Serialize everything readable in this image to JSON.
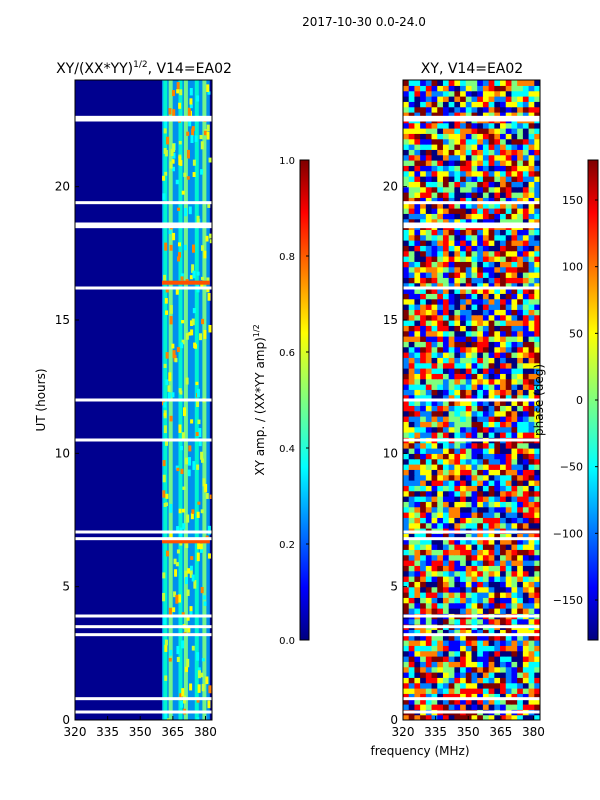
{
  "suptitle": "2017-10-30 0.0-24.0",
  "xlabel": "frequency (MHz)",
  "colors": {
    "band_bg": "#00008f",
    "gap": "#ffffff",
    "phase_mix": [
      "#00007f",
      "#0000ff",
      "#0080ff",
      "#00ffff",
      "#7fff7f",
      "#ffff00",
      "#ff8000",
      "#ff0000",
      "#7f0000"
    ]
  },
  "chart_data": [
    {
      "type": "heatmap",
      "title": "XY/(XX*YY)^{1/2}, V14=EA02",
      "title_main": "XY/(XX*YY)",
      "title_sup": "1/2",
      "title_rest": ", V14=EA02",
      "ylabel": "UT (hours)",
      "xlim": [
        320,
        383
      ],
      "ylim": [
        0,
        24
      ],
      "xticks": [
        320,
        335,
        350,
        365,
        380
      ],
      "yticks": [
        0,
        5,
        10,
        15,
        20
      ],
      "colorbar": {
        "label_main": "XY amp. / (XX*YY amp)",
        "label_sup": "1/2",
        "range": [
          0.0,
          1.0
        ],
        "ticks": [
          "0.0",
          "0.2",
          "0.4",
          "0.6",
          "0.8",
          "1.0"
        ]
      },
      "active_band_mhz": [
        360,
        382
      ],
      "bright_lanes_mhz": [
        361.5,
        364,
        368.5,
        371,
        376,
        379.5
      ],
      "hot_rows_ut": [
        6.7,
        16.4
      ],
      "gap_rows_ut": [
        0.3,
        0.8,
        3.2,
        3.5,
        3.9,
        6.8,
        7.05,
        10.5,
        12.0,
        16.2,
        18.5,
        18.6,
        19.4,
        22.5,
        22.6
      ]
    },
    {
      "type": "heatmap",
      "title": "XY, V14=EA02",
      "ylabel": "",
      "xlim": [
        320,
        383
      ],
      "ylim": [
        0,
        24
      ],
      "xticks": [
        320,
        335,
        350,
        365,
        380
      ],
      "yticks": [
        0,
        5,
        10,
        15,
        20
      ],
      "colorbar": {
        "label": "phase (deg)",
        "range": [
          -180,
          180
        ],
        "ticks": [
          "-150",
          "-100",
          "-50",
          "0",
          "50",
          "100",
          "150"
        ]
      },
      "gap_rows_ut": [
        0.3,
        0.8,
        3.2,
        3.5,
        3.9,
        6.8,
        7.05,
        10.5,
        12.0,
        16.2,
        18.5,
        18.6,
        19.4,
        22.5,
        22.6
      ]
    }
  ]
}
